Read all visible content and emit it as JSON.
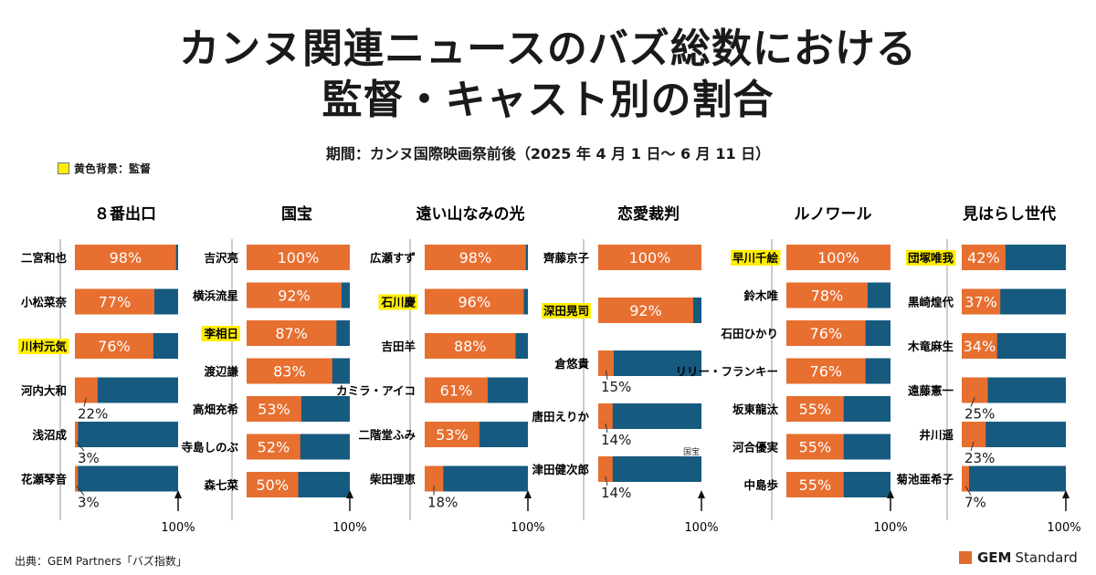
{
  "title_line1": "カンヌ関連ニュースのバズ総数における",
  "title_line2": "監督・キャスト別の割合",
  "subtitle": "期間：カンヌ国際映画祭前後（2025 年 4 月 1 日～ 6 月 11 日）",
  "legend_label": "黄色背景：監督",
  "source": "出典：GEM Partners「バズ指数」",
  "brand": {
    "strong": "GEM",
    "rest": "Standard"
  },
  "colors": {
    "orange": "#e76f30",
    "blue": "#165a80",
    "highlight": "#ffee00"
  },
  "chart_data": [
    {
      "type": "bar",
      "title": "８番出口",
      "axis_label": "100%",
      "xlim": [
        0,
        100
      ],
      "categories": [
        "二宮和也",
        "小松菜奈",
        "川村元気",
        "河内大和",
        "浅沼成",
        "花瀬琴音"
      ],
      "values": [
        98,
        77,
        76,
        22,
        3,
        3
      ],
      "directors": [
        "川村元気"
      ]
    },
    {
      "type": "bar",
      "title": "国宝",
      "axis_label": "100%",
      "xlim": [
        0,
        100
      ],
      "categories": [
        "吉沢亮",
        "横浜流星",
        "李相日",
        "渡辺謙",
        "高畑充希",
        "寺島しのぶ",
        "森七菜"
      ],
      "values": [
        100,
        92,
        87,
        83,
        53,
        52,
        50
      ],
      "directors": [
        "李相日"
      ]
    },
    {
      "type": "bar",
      "title": "遠い山なみの光",
      "axis_label": "100%",
      "xlim": [
        0,
        100
      ],
      "categories": [
        "広瀬すず",
        "石川慶",
        "吉田羊",
        "カミラ・アイコ",
        "二階堂ふみ",
        "柴田理恵"
      ],
      "values": [
        98,
        96,
        88,
        61,
        53,
        18
      ],
      "directors": [
        "石川慶"
      ]
    },
    {
      "type": "bar",
      "title": "恋愛裁判",
      "axis_label": "100%",
      "xlim": [
        0,
        100
      ],
      "categories": [
        "齊藤京子",
        "深田晃司",
        "倉悠貴",
        "唐田えりか",
        "津田健次郎"
      ],
      "values": [
        100,
        92,
        15,
        14,
        14
      ],
      "directors": [
        "深田晃司"
      ],
      "annotation": "国宝"
    },
    {
      "type": "bar",
      "title": "ルノワール",
      "axis_label": "100%",
      "xlim": [
        0,
        100
      ],
      "categories": [
        "早川千絵",
        "鈴木唯",
        "石田ひかり",
        "リリー・フランキー",
        "坂東龍汰",
        "河合優実",
        "中島歩"
      ],
      "values": [
        100,
        78,
        76,
        76,
        55,
        55,
        55
      ],
      "directors": [
        "早川千絵"
      ]
    },
    {
      "type": "bar",
      "title": "見はらし世代",
      "axis_label": "100%",
      "xlim": [
        0,
        100
      ],
      "categories": [
        "団塚唯我",
        "黒崎煌代",
        "木竜麻生",
        "遠藤憲一",
        "井川遥",
        "菊池亜希子"
      ],
      "values": [
        42,
        37,
        34,
        25,
        23,
        7
      ],
      "directors": [
        "団塚唯我"
      ]
    }
  ]
}
